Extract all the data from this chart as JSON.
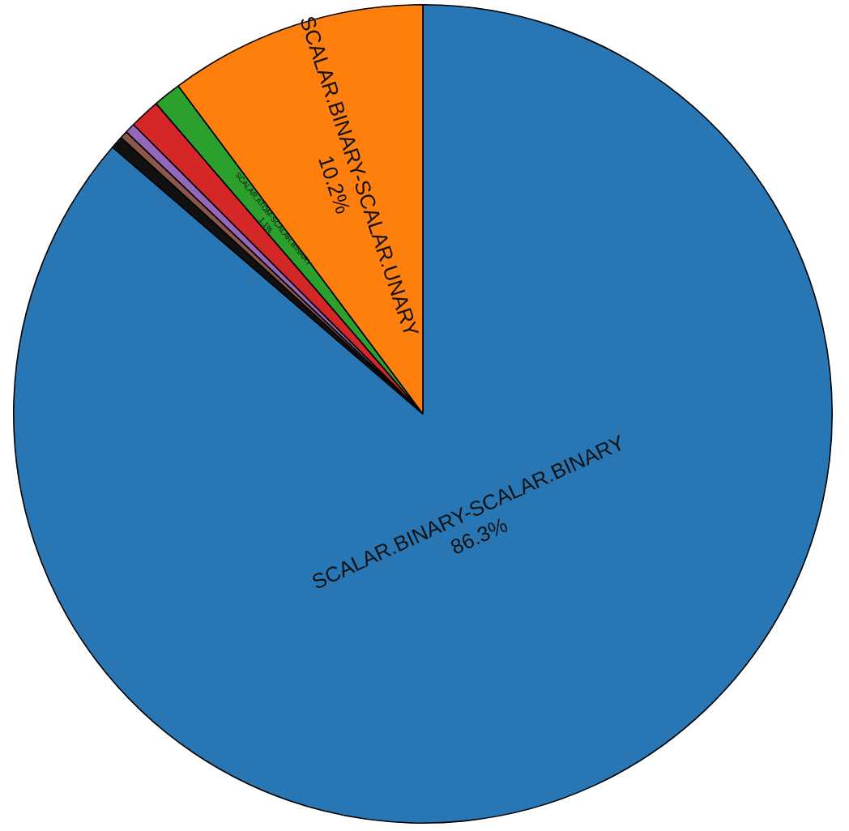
{
  "chart_data": {
    "type": "pie",
    "categories": [
      "SCALAR.BINARY-SCALAR.BINARY",
      null,
      null,
      null,
      null,
      "SCALAR.ATOM-SCALAR.BINARY",
      "SCALAR.BINARY-SCALAR.UNARY"
    ],
    "values": [
      86.3,
      0.5,
      0.3,
      0.4,
      1.2,
      1.1,
      10.2
    ],
    "colors": [
      "#2877b4",
      "#111111",
      "#8c564b",
      "#9467bd",
      "#d62728",
      "#2ca02c",
      "#ff7f0e"
    ],
    "value_labels": [
      "86.3%",
      null,
      null,
      null,
      null,
      "1.1%",
      "10.2%"
    ],
    "legend": false
  }
}
